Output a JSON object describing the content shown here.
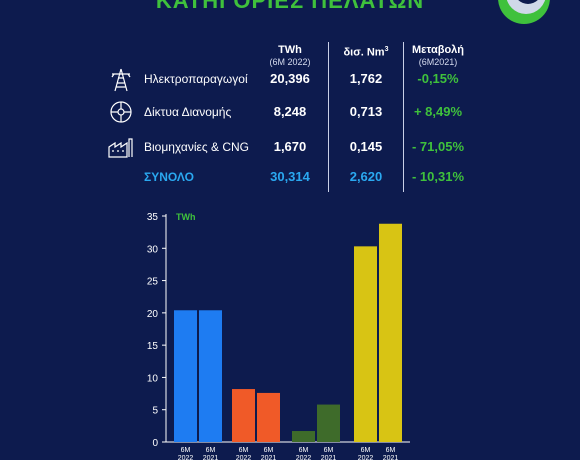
{
  "page": {
    "title": "ΚΑΤΗΓΟΡΙΕΣ ΠΕΛΑΤΩΝ"
  },
  "table": {
    "headers": {
      "twh": "TWh",
      "twh_sub": "(6M 2022)",
      "nm3": "δισ. Nm",
      "nm3_sup": "3",
      "change": "Μεταβολή",
      "change_sub": "(6M2021)"
    },
    "rows": [
      {
        "icon": "power-plant-tower-icon",
        "label": "Ηλεκτροπαραγωγοί",
        "twh": "20,396",
        "nm3": "1,762",
        "change": "-0,15%"
      },
      {
        "icon": "distribution-network-icon",
        "label": "Δίκτυα Διανομής",
        "twh": "8,248",
        "nm3": "0,713",
        "change": "+ 8,49%"
      },
      {
        "icon": "factory-icon",
        "label": "Βιομηχανίες & CNG",
        "twh": "1,670",
        "nm3": "0,145",
        "change": "- 71,05%"
      }
    ],
    "total": {
      "label": "ΣΥΝΟΛΟ",
      "twh": "30,314",
      "nm3": "2,620",
      "change": "- 10,31%"
    }
  },
  "colors": {
    "background": "#0d1b4e",
    "accent_green": "#3fc13c",
    "accent_blue": "#2aa8f0"
  },
  "chart_data": {
    "type": "bar",
    "unit_label": "TWh",
    "ylim": [
      0,
      35
    ],
    "yticks": [
      0,
      5,
      10,
      15,
      20,
      25,
      30,
      35
    ],
    "grid": false,
    "groups": [
      {
        "bars": [
          {
            "label": "6M 2022",
            "value": 20.4,
            "color": "#1e7cf2"
          },
          {
            "label": "6M 2021",
            "value": 20.4,
            "color": "#1e7cf2"
          }
        ]
      },
      {
        "bars": [
          {
            "label": "6M 2022",
            "value": 8.2,
            "color": "#f05a28"
          },
          {
            "label": "6M 2021",
            "value": 7.6,
            "color": "#f05a28"
          }
        ]
      },
      {
        "bars": [
          {
            "label": "6M 2022",
            "value": 1.7,
            "color": "#3e6b2a"
          },
          {
            "label": "6M 2021",
            "value": 5.8,
            "color": "#3e6b2a"
          }
        ]
      },
      {
        "bars": [
          {
            "label": "6M 2022",
            "value": 30.3,
            "color": "#d8c414"
          },
          {
            "label": "6M 2021",
            "value": 33.8,
            "color": "#d8c414"
          }
        ]
      }
    ]
  }
}
